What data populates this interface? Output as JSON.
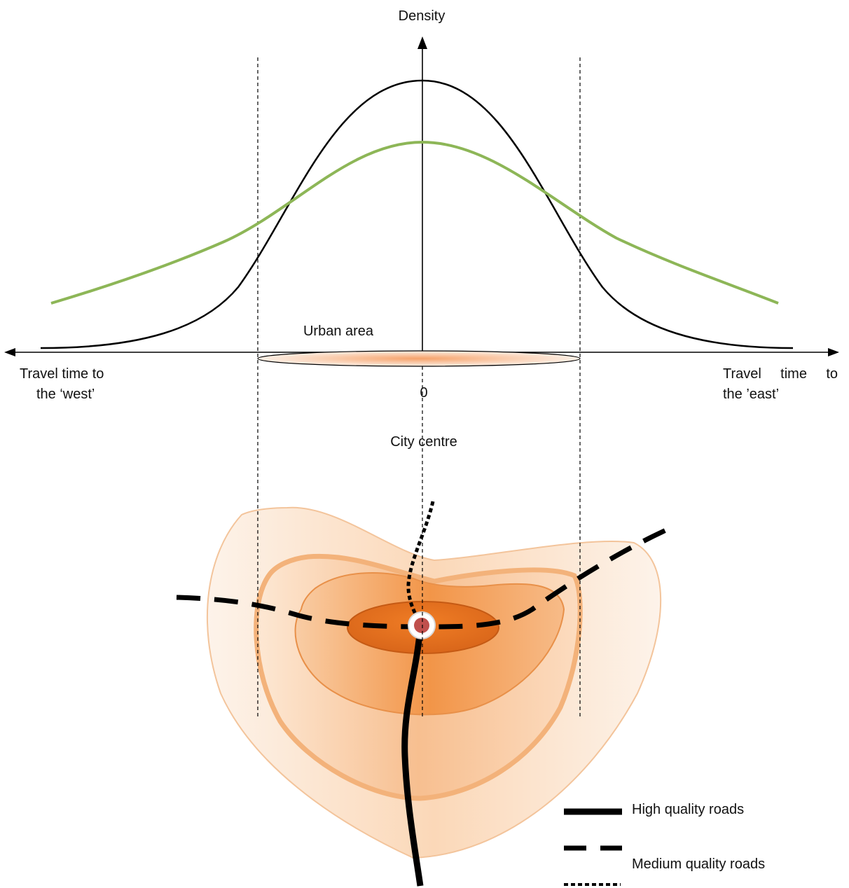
{
  "diagram": {
    "y_axis_label": "Density",
    "urban_area_label": "Urban area",
    "origin_label": "0",
    "city_centre_label": "City centre",
    "west_label": {
      "words": [
        "Travel",
        "time",
        "to"
      ],
      "line2": "the ‘west’"
    },
    "east_label": {
      "words": [
        "Travel",
        "time",
        "to"
      ],
      "line2": "the ’east’"
    },
    "legend": [
      {
        "style": "solid",
        "label": "High quality roads"
      },
      {
        "style": "dashed",
        "label": "Medium quality roads"
      },
      {
        "style": "dotted",
        "label": ""
      }
    ],
    "colors": {
      "curve_black": "#000000",
      "curve_green": "#8db657",
      "zone_outer": "#fbe3cc",
      "zone_mid": "#f7c49a",
      "zone_inner": "#f2a35a",
      "zone_core": "#e06e1a",
      "centre_dot": "#c0504d"
    }
  }
}
